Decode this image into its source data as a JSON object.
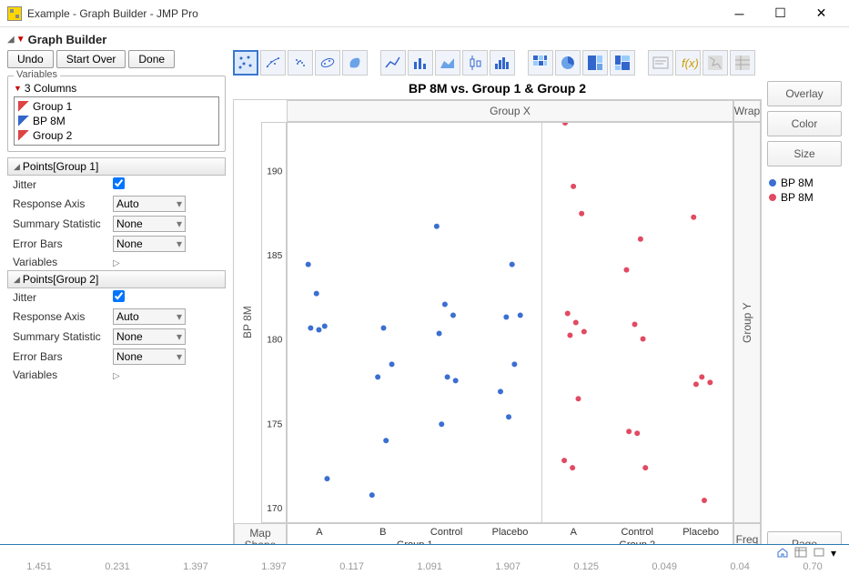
{
  "window": {
    "title": "Example - Graph Builder - JMP Pro"
  },
  "gb": {
    "title": "Graph Builder"
  },
  "buttons": {
    "undo": "Undo",
    "start_over": "Start Over",
    "done": "Done"
  },
  "variables": {
    "legend": "Variables",
    "header": "3 Columns",
    "items": [
      {
        "name": "Group 1",
        "icon": "red"
      },
      {
        "name": "BP 8M",
        "icon": "blue"
      },
      {
        "name": "Group 2",
        "icon": "red"
      }
    ]
  },
  "sections": [
    {
      "title": "Points[Group 1]",
      "props": [
        {
          "label": "Jitter",
          "type": "check",
          "checked": true
        },
        {
          "label": "Response Axis",
          "type": "combo",
          "value": "Auto"
        },
        {
          "label": "Summary Statistic",
          "type": "combo",
          "value": "None"
        },
        {
          "label": "Error Bars",
          "type": "combo",
          "value": "None"
        },
        {
          "label": "Variables",
          "type": "arrow"
        }
      ]
    },
    {
      "title": "Points[Group 2]",
      "props": [
        {
          "label": "Jitter",
          "type": "check",
          "checked": true
        },
        {
          "label": "Response Axis",
          "type": "combo",
          "value": "Auto"
        },
        {
          "label": "Summary Statistic",
          "type": "combo",
          "value": "None"
        },
        {
          "label": "Error Bars",
          "type": "combo",
          "value": "None"
        },
        {
          "label": "Variables",
          "type": "arrow"
        }
      ]
    }
  ],
  "chart": {
    "title": "BP 8M vs. Group 1 & Group 2",
    "ylabel": "BP 8M",
    "groupx_label": "Group X",
    "groupy_label": "Group Y",
    "wrap_label": "Wrap",
    "freq_label": "Freq",
    "map_label": "Map\nShape",
    "ylim": [
      170,
      192
    ],
    "yticks": [
      170,
      175,
      180,
      185,
      190
    ],
    "panels": [
      {
        "label": "Group 1",
        "cats": [
          "A",
          "B",
          "Control",
          "Placebo"
        ],
        "color": "#3b6fd1",
        "points": {
          "A": [
            184.2,
            182.6,
            180.8,
            180.7,
            180.6,
            172.4
          ],
          "B": [
            180.7,
            178.7,
            178.0,
            174.5,
            171.5
          ],
          "Control": [
            186.3,
            182.0,
            181.4,
            180.4,
            178.0,
            177.8,
            175.4
          ],
          "Placebo": [
            184.2,
            181.4,
            181.3,
            178.7,
            177.2,
            175.8
          ]
        }
      },
      {
        "label": "Group 2",
        "cats": [
          "A",
          "Control",
          "Placebo"
        ],
        "color": "#e24a62",
        "points": {
          "A": [
            192.0,
            188.5,
            187.0,
            181.5,
            181.0,
            180.5,
            180.3,
            176.8,
            173.4,
            173.0
          ],
          "Control": [
            185.6,
            183.9,
            180.9,
            180.1,
            175.0,
            174.9,
            173.0
          ],
          "Placebo": [
            186.8,
            178.0,
            177.7,
            177.6,
            171.2
          ]
        }
      }
    ],
    "legend_items": [
      {
        "label": "BP 8M",
        "color": "#3b6fd1"
      },
      {
        "label": "BP 8M",
        "color": "#e24a62"
      }
    ],
    "background": "#ffffff",
    "marker_radius": 3
  },
  "dropzones": {
    "overlay": "Overlay",
    "color": "Color",
    "size": "Size",
    "page": "Page"
  },
  "numstrip": [
    "1.451",
    "0.231",
    "1.397",
    "1.397",
    "0.117",
    "1.091",
    "1.907",
    "0.125",
    "0.049",
    "0.04",
    "0.70"
  ]
}
